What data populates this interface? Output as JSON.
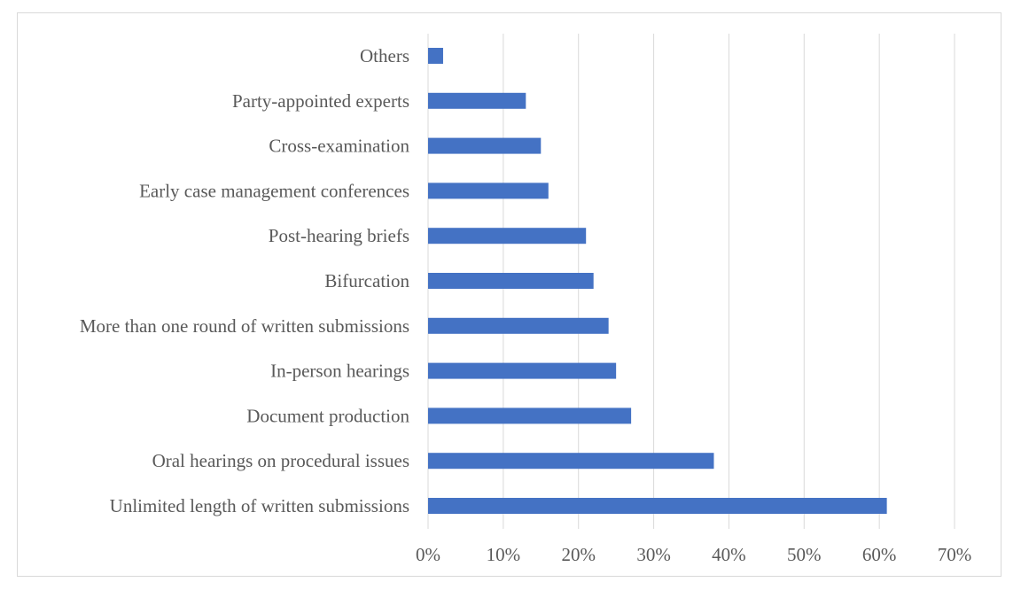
{
  "chart_data": {
    "type": "bar",
    "orientation": "horizontal",
    "categories": [
      "Unlimited length of written submissions",
      "Oral hearings on procedural issues",
      "Document production",
      "In-person hearings",
      "More than one round of written submissions",
      "Bifurcation",
      "Post-hearing briefs",
      "Early case management conferences",
      "Cross-examination",
      "Party-appointed experts",
      "Others"
    ],
    "values": [
      61,
      38,
      27,
      25,
      24,
      22,
      21,
      16,
      15,
      13,
      2
    ],
    "xlim": [
      0,
      70
    ],
    "xticks": [
      "0%",
      "10%",
      "20%",
      "30%",
      "40%",
      "50%",
      "60%",
      "70%"
    ],
    "grid": "vertical",
    "bar_color": "#4472C4",
    "grid_color": "#D9D9D9",
    "text_color": "#595959"
  }
}
